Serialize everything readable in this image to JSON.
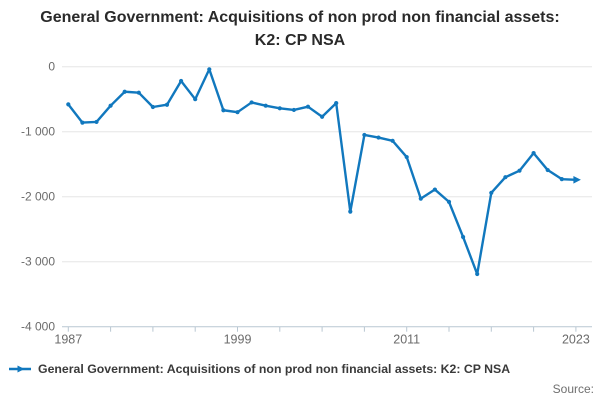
{
  "title": "General Government: Acquisitions of non prod non financial assets: K2: CP NSA",
  "legend": {
    "label": "General Government: Acquisitions of non prod non financial assets: K2: CP NSA"
  },
  "source_label": "Source:",
  "colors": {
    "line": "#1178be",
    "grid": "#e6e6e6",
    "axis": "#b9c7d2",
    "tick_label": "#6b6b6b",
    "title": "#2a2a2a"
  },
  "chart_data": {
    "type": "line",
    "title": "General Government: Acquisitions of non prod non financial assets: K2: CP NSA",
    "xlabel": "",
    "ylabel": "",
    "x": [
      1987,
      1988,
      1989,
      1990,
      1991,
      1992,
      1993,
      1994,
      1995,
      1996,
      1997,
      1998,
      1999,
      2000,
      2001,
      2002,
      2003,
      2004,
      2005,
      2006,
      2007,
      2008,
      2009,
      2010,
      2011,
      2012,
      2013,
      2014,
      2015,
      2016,
      2017,
      2018,
      2019,
      2020,
      2021,
      2022,
      2023
    ],
    "series": [
      {
        "name": "General Government: Acquisitions of non prod non financial assets: K2: CP NSA",
        "values": [
          -580,
          -860,
          -850,
          -600,
          -385,
          -400,
          -620,
          -585,
          -220,
          -500,
          -40,
          -670,
          -700,
          -550,
          -600,
          -640,
          -665,
          -615,
          -770,
          -560,
          -2230,
          -1050,
          -1090,
          -1140,
          -1390,
          -2030,
          -1890,
          -2080,
          -2620,
          -3190,
          -1940,
          -1700,
          -1600,
          -1330,
          -1590,
          -1730,
          -1740
        ]
      }
    ],
    "ylim": [
      -4000,
      0
    ],
    "yticks": [
      0,
      -1000,
      -2000,
      -3000,
      -4000
    ],
    "ytick_labels": [
      "0",
      "-1 000",
      "-2 000",
      "-3 000",
      "-4 000"
    ],
    "xtick_step_years": 3,
    "xtick_labels_shown": [
      "1987",
      "1999",
      "2011",
      "2023"
    ],
    "grid": "horizontal",
    "legend_position": "bottom-left",
    "last_point_marker": "arrow-right"
  }
}
